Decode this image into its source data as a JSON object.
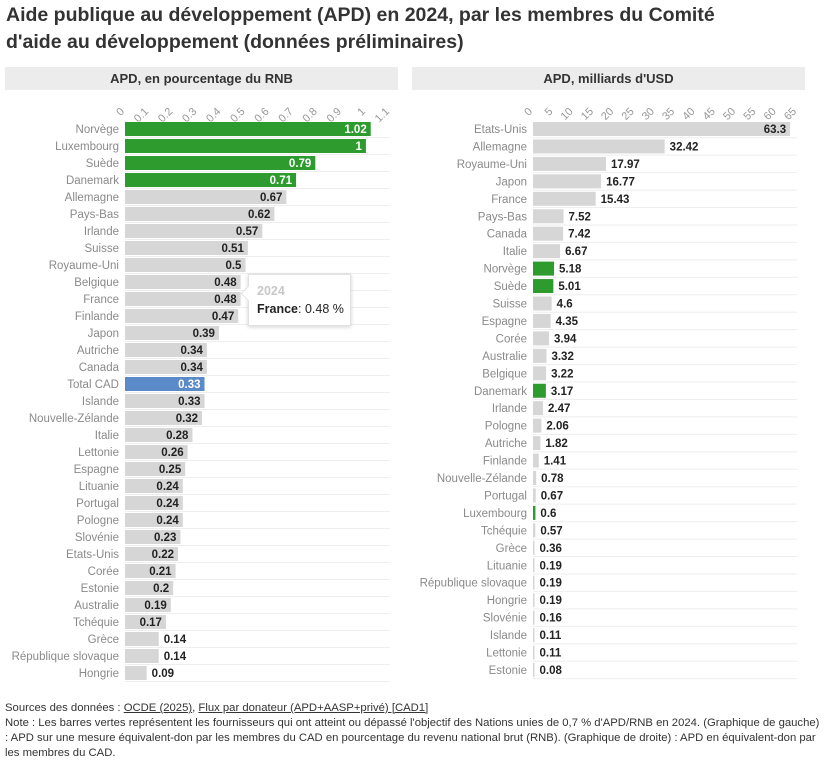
{
  "title_line1": "Aide publique au développement (APD) en 2024, par les membres du Comité",
  "title_line2": "d'aide au développement (données préliminaires)",
  "colors": {
    "green": "#2e9b2e",
    "grey": "#d6d6d6",
    "blue": "#5b8ac9",
    "panel_bg": "#ececec"
  },
  "chart_data": [
    {
      "type": "bar",
      "orientation": "horizontal",
      "title": "APD, en pourcentage du RNB",
      "xlim": [
        0,
        1.1
      ],
      "ticks": [
        "0",
        "0.1",
        "0.2",
        "0.3",
        "0.4",
        "0.5",
        "0.6",
        "0.7",
        "0.8",
        "0.9",
        "1",
        "1.1"
      ],
      "categories": [
        "Norvège",
        "Luxembourg",
        "Suède",
        "Danemark",
        "Allemagne",
        "Pays-Bas",
        "Irlande",
        "Suisse",
        "Royaume-Uni",
        "Belgique",
        "France",
        "Finlande",
        "Japon",
        "Autriche",
        "Canada",
        "Total CAD",
        "Islande",
        "Nouvelle-Zélande",
        "Italie",
        "Lettonie",
        "Espagne",
        "Lituanie",
        "Portugal",
        "Pologne",
        "Slovénie",
        "Etats-Unis",
        "Corée",
        "Estonie",
        "Australie",
        "Tchéquie",
        "Grèce",
        "République slovaque",
        "Hongrie"
      ],
      "values": [
        1.02,
        1,
        0.79,
        0.71,
        0.67,
        0.62,
        0.57,
        0.51,
        0.5,
        0.48,
        0.48,
        0.47,
        0.39,
        0.34,
        0.34,
        0.33,
        0.33,
        0.32,
        0.28,
        0.26,
        0.25,
        0.24,
        0.24,
        0.24,
        0.23,
        0.22,
        0.21,
        0.2,
        0.19,
        0.17,
        0.14,
        0.14,
        0.09
      ],
      "labels": [
        "1.02",
        "1",
        "0.79",
        "0.71",
        "0.67",
        "0.62",
        "0.57",
        "0.51",
        "0.5",
        "0.48",
        "0.48",
        "0.47",
        "0.39",
        "0.34",
        "0.34",
        "0.33",
        "0.33",
        "0.32",
        "0.28",
        "0.26",
        "0.25",
        "0.24",
        "0.24",
        "0.24",
        "0.23",
        "0.22",
        "0.21",
        "0.2",
        "0.19",
        "0.17",
        "0.14",
        "0.14",
        "0.09"
      ],
      "highlight": {
        "green": [
          "Norvège",
          "Luxembourg",
          "Suède",
          "Danemark"
        ],
        "blue": [
          "Total CAD"
        ]
      }
    },
    {
      "type": "bar",
      "orientation": "horizontal",
      "title": "APD, milliards d'USD",
      "xlim": [
        0,
        65
      ],
      "ticks": [
        "0",
        "5",
        "10",
        "15",
        "20",
        "25",
        "30",
        "35",
        "40",
        "45",
        "50",
        "55",
        "60",
        "65"
      ],
      "categories": [
        "Etats-Unis",
        "Allemagne",
        "Royaume-Uni",
        "Japon",
        "France",
        "Pays-Bas",
        "Canada",
        "Italie",
        "Norvège",
        "Suède",
        "Suisse",
        "Espagne",
        "Corée",
        "Australie",
        "Belgique",
        "Danemark",
        "Irlande",
        "Pologne",
        "Autriche",
        "Finlande",
        "Nouvelle-Zélande",
        "Portugal",
        "Luxembourg",
        "Tchéquie",
        "Grèce",
        "Lituanie",
        "République slovaque",
        "Hongrie",
        "Slovénie",
        "Islande",
        "Lettonie",
        "Estonie"
      ],
      "values": [
        63.3,
        32.42,
        17.97,
        16.77,
        15.43,
        7.52,
        7.42,
        6.67,
        5.18,
        5.01,
        4.6,
        4.35,
        3.94,
        3.32,
        3.22,
        3.17,
        2.47,
        2.06,
        1.82,
        1.41,
        0.78,
        0.67,
        0.6,
        0.57,
        0.36,
        0.19,
        0.19,
        0.19,
        0.16,
        0.11,
        0.11,
        0.08
      ],
      "labels": [
        "63.3",
        "32.42",
        "17.97",
        "16.77",
        "15.43",
        "7.52",
        "7.42",
        "6.67",
        "5.18",
        "5.01",
        "4.6",
        "4.35",
        "3.94",
        "3.32",
        "3.22",
        "3.17",
        "2.47",
        "2.06",
        "1.82",
        "1.41",
        "0.78",
        "0.67",
        "0.6",
        "0.57",
        "0.36",
        "0.19",
        "0.19",
        "0.19",
        "0.16",
        "0.11",
        "0.11",
        "0.08"
      ],
      "highlight": {
        "green": [
          "Norvège",
          "Suède",
          "Danemark",
          "Luxembourg"
        ],
        "blue": []
      }
    }
  ],
  "tooltip": {
    "year": "2024",
    "country": "France",
    "value": ": 0.48 %"
  },
  "footer": {
    "sources_prefix": "Sources des données : ",
    "link1": "OCDE (2025)",
    "sep": ", ",
    "link2": "Flux par donateur (APD+AASP+privé) [CAD1]",
    "note": "Note : Les barres vertes représentent les fournisseurs qui ont atteint ou dépassé l'objectif des Nations unies de 0,7 % d'APD/RNB en 2024. (Graphique de gauche) : APD sur une mesure équivalent-don par les membres du CAD en pourcentage du revenu national brut (RNB). (Graphique de droite) : APD en équivalent-don par les membres du CAD."
  }
}
